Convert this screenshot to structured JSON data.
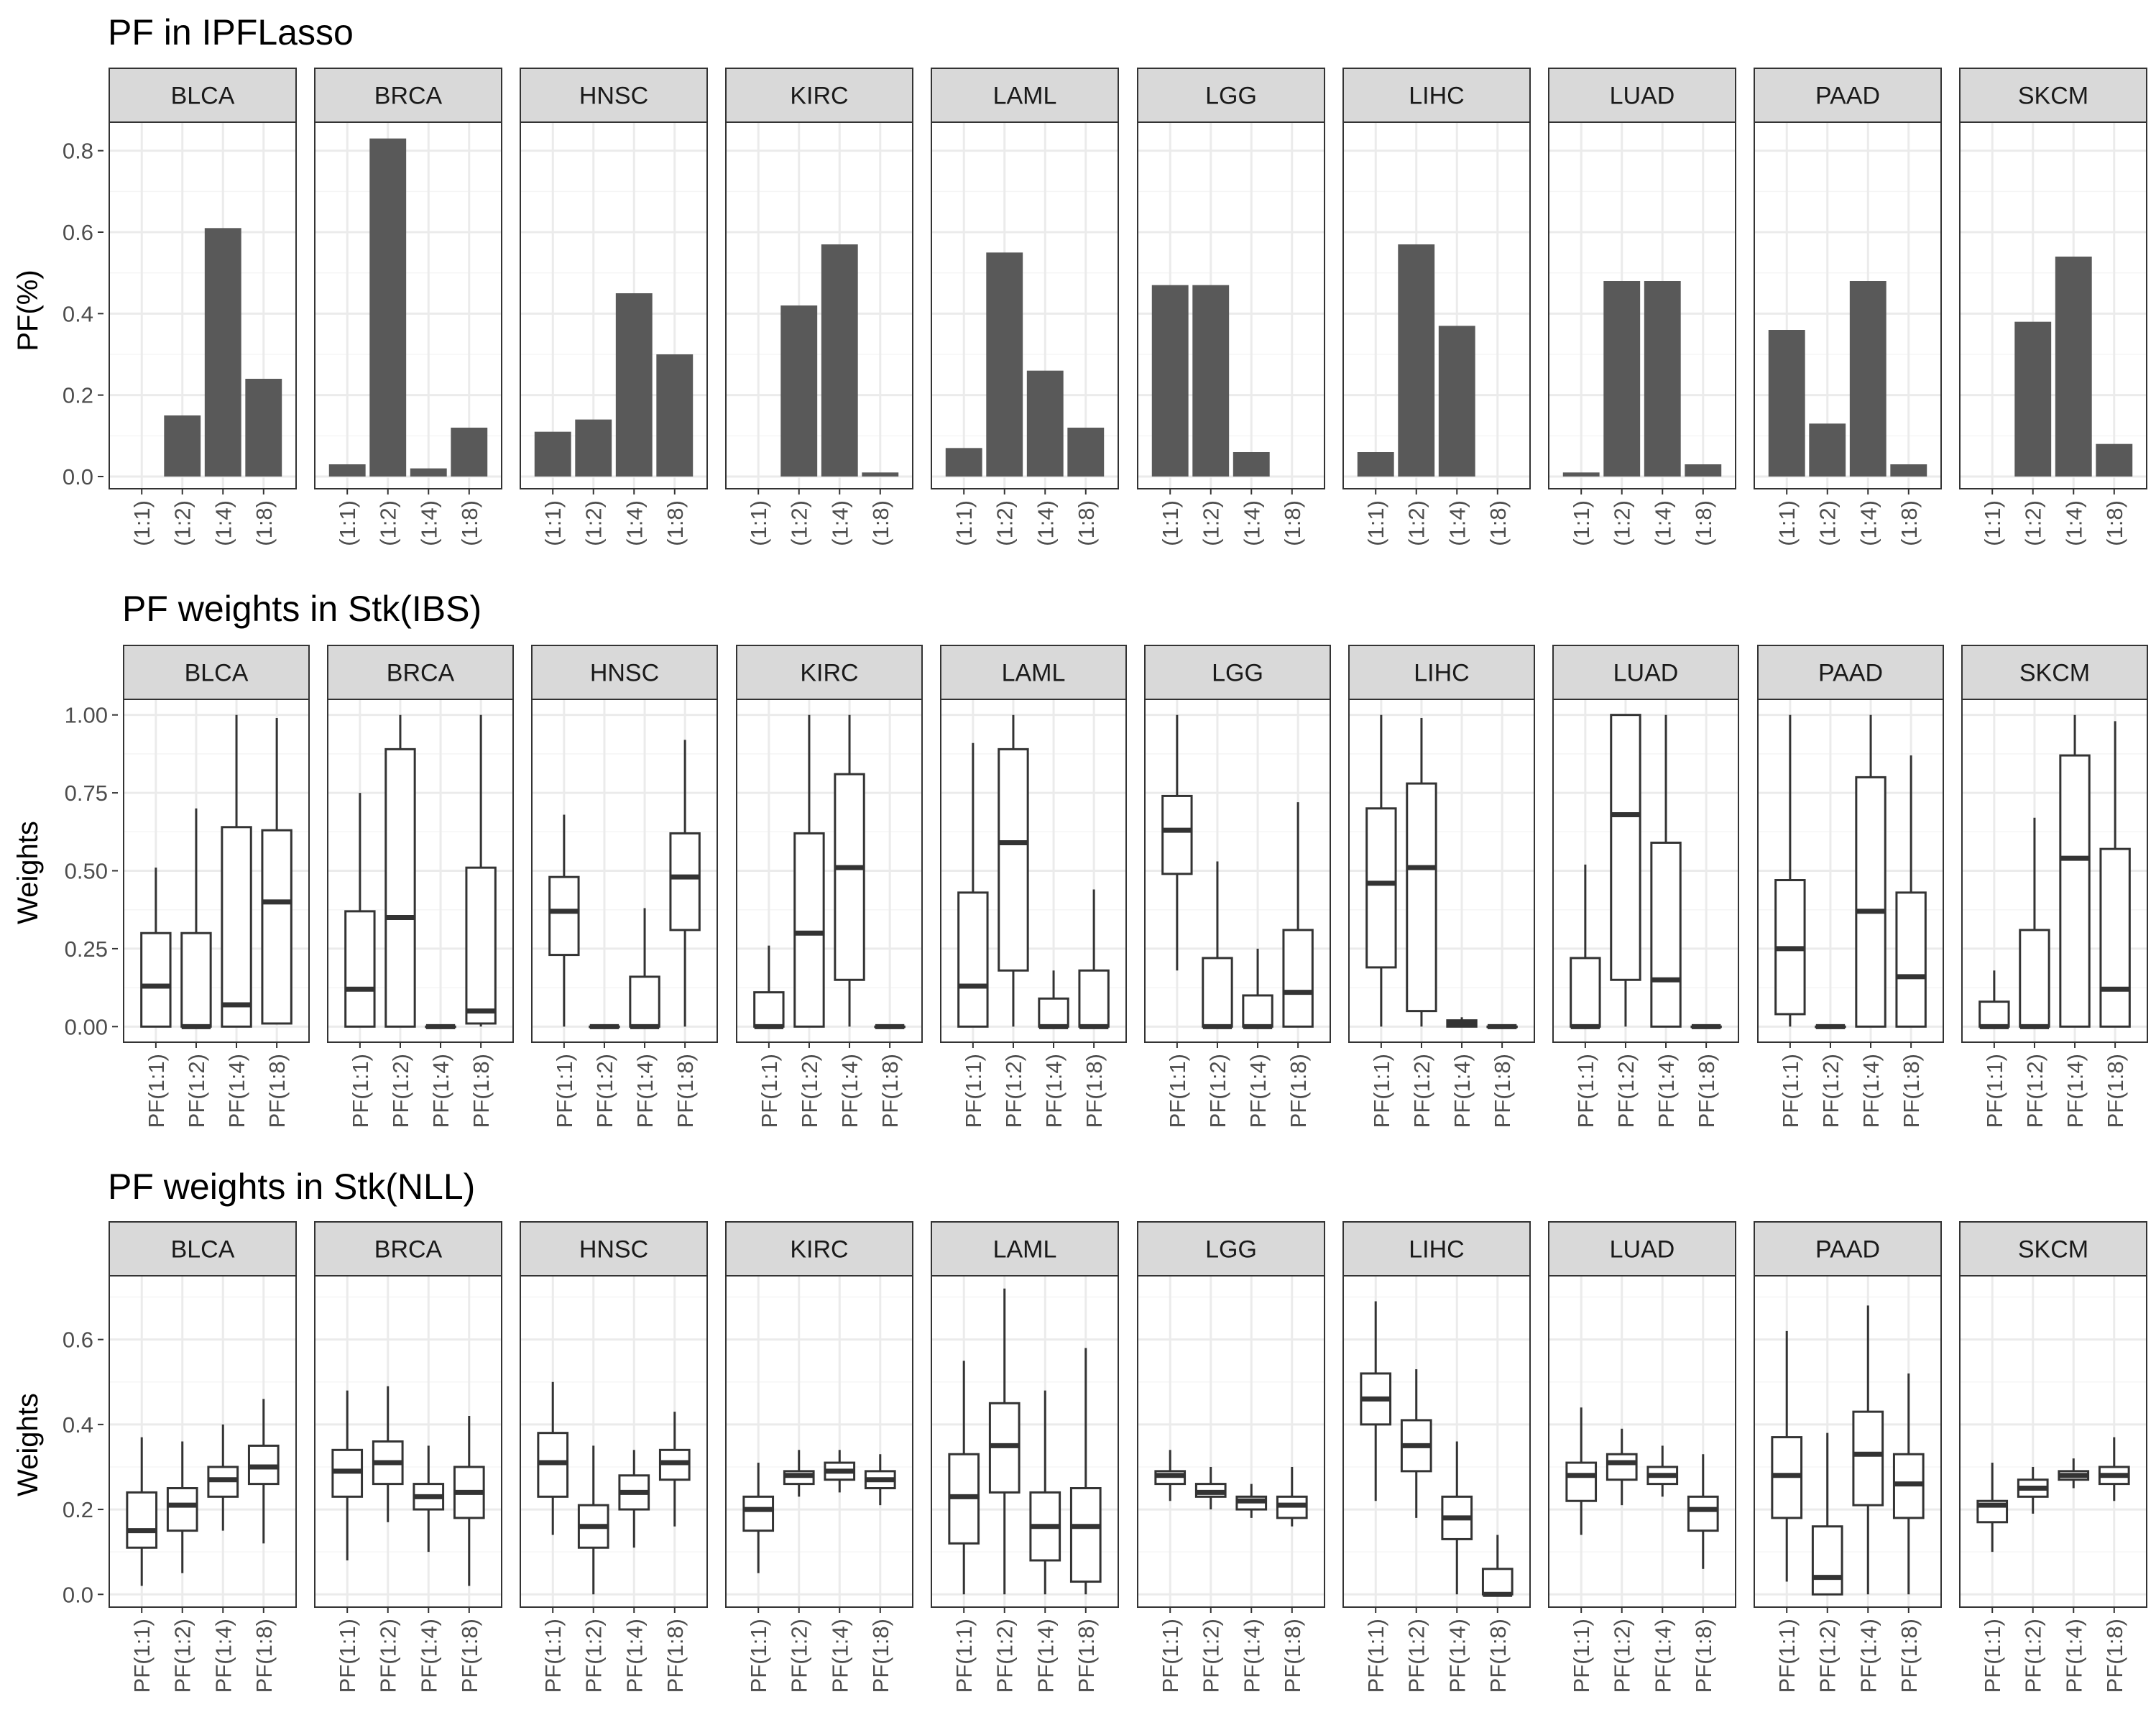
{
  "colors": {
    "bar_fill": "#595959",
    "strip_fill": "#d9d9d9",
    "panel_border": "#333333",
    "grid_major": "#ebebeb",
    "grid_minor": "#f5f5f5",
    "box_line": "#333333",
    "tick_text": "#4d4d4d"
  },
  "chart_data": [
    {
      "type": "bar",
      "title": "PF in IPFLasso",
      "ylabel": "PF(%)",
      "xlabel": "",
      "ylim": [
        -0.03,
        0.87
      ],
      "yticks": [
        0,
        0.2,
        0.4,
        0.6,
        0.8
      ],
      "ytick_labels": [
        "0.0",
        "0.2",
        "0.4",
        "0.6",
        "0.8"
      ],
      "categories": [
        "(1:1)",
        "(1:2)",
        "(1:4)",
        "(1:8)"
      ],
      "grid": true,
      "facets": [
        {
          "name": "BLCA",
          "values": [
            0.0,
            0.15,
            0.61,
            0.24
          ]
        },
        {
          "name": "BRCA",
          "values": [
            0.03,
            0.83,
            0.02,
            0.12
          ]
        },
        {
          "name": "HNSC",
          "values": [
            0.11,
            0.14,
            0.45,
            0.3
          ]
        },
        {
          "name": "KIRC",
          "values": [
            0.0,
            0.42,
            0.57,
            0.01
          ]
        },
        {
          "name": "LAML",
          "values": [
            0.07,
            0.55,
            0.26,
            0.12
          ]
        },
        {
          "name": "LGG",
          "values": [
            0.47,
            0.47,
            0.06,
            0.0
          ]
        },
        {
          "name": "LIHC",
          "values": [
            0.06,
            0.57,
            0.37,
            0.0
          ]
        },
        {
          "name": "LUAD",
          "values": [
            0.01,
            0.48,
            0.48,
            0.03
          ]
        },
        {
          "name": "PAAD",
          "values": [
            0.36,
            0.13,
            0.48,
            0.03
          ]
        },
        {
          "name": "SKCM",
          "values": [
            0.0,
            0.38,
            0.54,
            0.08
          ]
        }
      ]
    },
    {
      "type": "box",
      "title": "PF weights in Stk(IBS)",
      "ylabel": "Weights",
      "xlabel": "",
      "ylim": [
        -0.05,
        1.05
      ],
      "yticks": [
        0,
        0.25,
        0.5,
        0.75,
        1.0
      ],
      "ytick_labels": [
        "0.00",
        "0.25",
        "0.50",
        "0.75",
        "1.00"
      ],
      "categories": [
        "PF(1:1)",
        "PF(1:2)",
        "PF(1:4)",
        "PF(1:8)"
      ],
      "grid": true,
      "stat_order": [
        "min",
        "q1",
        "median",
        "q3",
        "max"
      ],
      "facets": [
        {
          "name": "BLCA",
          "boxes": [
            [
              0,
              0,
              0.13,
              0.3,
              0.51
            ],
            [
              0,
              0,
              0.0,
              0.3,
              0.7
            ],
            [
              0,
              0,
              0.07,
              0.64,
              1.0
            ],
            [
              0.01,
              0.01,
              0.4,
              0.63,
              0.99
            ]
          ]
        },
        {
          "name": "BRCA",
          "boxes": [
            [
              0,
              0,
              0.12,
              0.37,
              0.75
            ],
            [
              0,
              0,
              0.35,
              0.89,
              1.0
            ],
            [
              0,
              0,
              0.0,
              0.0,
              0.0
            ],
            [
              0,
              0.01,
              0.05,
              0.51,
              1.0
            ]
          ]
        },
        {
          "name": "HNSC",
          "boxes": [
            [
              0,
              0.23,
              0.37,
              0.48,
              0.68
            ],
            [
              0,
              0,
              0.0,
              0.0,
              0.0
            ],
            [
              0,
              0,
              0.0,
              0.16,
              0.38
            ],
            [
              0,
              0.31,
              0.48,
              0.62,
              0.92
            ]
          ]
        },
        {
          "name": "KIRC",
          "boxes": [
            [
              0,
              0,
              0.0,
              0.11,
              0.26
            ],
            [
              0,
              0,
              0.3,
              0.62,
              1.0
            ],
            [
              0,
              0.15,
              0.51,
              0.81,
              1.0
            ],
            [
              0,
              0,
              0.0,
              0.0,
              0.0
            ]
          ]
        },
        {
          "name": "LAML",
          "boxes": [
            [
              0,
              0,
              0.13,
              0.43,
              0.91
            ],
            [
              0,
              0.18,
              0.59,
              0.89,
              1.0
            ],
            [
              0,
              0,
              0.0,
              0.09,
              0.18
            ],
            [
              0,
              0,
              0.0,
              0.18,
              0.44
            ]
          ]
        },
        {
          "name": "LGG",
          "boxes": [
            [
              0.18,
              0.49,
              0.63,
              0.74,
              1.0
            ],
            [
              0,
              0,
              0.0,
              0.22,
              0.53
            ],
            [
              0,
              0,
              0.0,
              0.1,
              0.25
            ],
            [
              0,
              0,
              0.11,
              0.31,
              0.72
            ]
          ]
        },
        {
          "name": "LIHC",
          "boxes": [
            [
              0,
              0.19,
              0.46,
              0.7,
              1.0
            ],
            [
              0,
              0.05,
              0.51,
              0.78,
              0.99
            ],
            [
              0,
              0,
              0.01,
              0.02,
              0.03
            ],
            [
              0,
              0,
              0.0,
              0.0,
              0.0
            ]
          ]
        },
        {
          "name": "LUAD",
          "boxes": [
            [
              0,
              0,
              0.0,
              0.22,
              0.52
            ],
            [
              0,
              0.15,
              0.68,
              1.0,
              1.0
            ],
            [
              0,
              0,
              0.15,
              0.59,
              1.0
            ],
            [
              0,
              0,
              0.0,
              0.0,
              0.0
            ]
          ]
        },
        {
          "name": "PAAD",
          "boxes": [
            [
              0,
              0.04,
              0.25,
              0.47,
              1.0
            ],
            [
              0,
              0,
              0.0,
              0.0,
              0.0
            ],
            [
              0,
              0,
              0.37,
              0.8,
              1.0
            ],
            [
              0,
              0,
              0.16,
              0.43,
              0.87
            ]
          ]
        },
        {
          "name": "SKCM",
          "boxes": [
            [
              0,
              0,
              0.0,
              0.08,
              0.18
            ],
            [
              0,
              0,
              0.0,
              0.31,
              0.67
            ],
            [
              0,
              0,
              0.54,
              0.87,
              1.0
            ],
            [
              0,
              0,
              0.12,
              0.57,
              0.98
            ]
          ]
        }
      ]
    },
    {
      "type": "box",
      "title": "PF weights in Stk(NLL)",
      "ylabel": "Weights",
      "xlabel": "",
      "ylim": [
        -0.03,
        0.75
      ],
      "yticks": [
        0,
        0.2,
        0.4,
        0.6
      ],
      "ytick_labels": [
        "0.0",
        "0.2",
        "0.4",
        "0.6"
      ],
      "categories": [
        "PF(1:1)",
        "PF(1:2)",
        "PF(1:4)",
        "PF(1:8)"
      ],
      "grid": true,
      "stat_order": [
        "min",
        "q1",
        "median",
        "q3",
        "max"
      ],
      "facets": [
        {
          "name": "BLCA",
          "boxes": [
            [
              0.02,
              0.11,
              0.15,
              0.24,
              0.37
            ],
            [
              0.05,
              0.15,
              0.21,
              0.25,
              0.36
            ],
            [
              0.15,
              0.23,
              0.27,
              0.3,
              0.4
            ],
            [
              0.12,
              0.26,
              0.3,
              0.35,
              0.46
            ]
          ]
        },
        {
          "name": "BRCA",
          "boxes": [
            [
              0.08,
              0.23,
              0.29,
              0.34,
              0.48
            ],
            [
              0.17,
              0.26,
              0.31,
              0.36,
              0.49
            ],
            [
              0.1,
              0.2,
              0.23,
              0.26,
              0.35
            ],
            [
              0.02,
              0.18,
              0.24,
              0.3,
              0.42
            ]
          ]
        },
        {
          "name": "HNSC",
          "boxes": [
            [
              0.14,
              0.23,
              0.31,
              0.38,
              0.5
            ],
            [
              0.0,
              0.11,
              0.16,
              0.21,
              0.35
            ],
            [
              0.11,
              0.2,
              0.24,
              0.28,
              0.34
            ],
            [
              0.16,
              0.27,
              0.31,
              0.34,
              0.43
            ]
          ]
        },
        {
          "name": "KIRC",
          "boxes": [
            [
              0.05,
              0.15,
              0.2,
              0.23,
              0.31
            ],
            [
              0.23,
              0.26,
              0.28,
              0.29,
              0.34
            ],
            [
              0.24,
              0.27,
              0.29,
              0.31,
              0.34
            ],
            [
              0.21,
              0.25,
              0.27,
              0.29,
              0.33
            ]
          ]
        },
        {
          "name": "LAML",
          "boxes": [
            [
              0.0,
              0.12,
              0.23,
              0.33,
              0.55
            ],
            [
              0.0,
              0.24,
              0.35,
              0.45,
              0.72
            ],
            [
              0.0,
              0.08,
              0.16,
              0.24,
              0.48
            ],
            [
              0.0,
              0.03,
              0.16,
              0.25,
              0.58
            ]
          ]
        },
        {
          "name": "LGG",
          "boxes": [
            [
              0.22,
              0.26,
              0.28,
              0.29,
              0.34
            ],
            [
              0.2,
              0.23,
              0.24,
              0.26,
              0.3
            ],
            [
              0.18,
              0.2,
              0.22,
              0.23,
              0.26
            ],
            [
              0.16,
              0.18,
              0.21,
              0.23,
              0.3
            ]
          ]
        },
        {
          "name": "LIHC",
          "boxes": [
            [
              0.22,
              0.4,
              0.46,
              0.52,
              0.69
            ],
            [
              0.18,
              0.29,
              0.35,
              0.41,
              0.53
            ],
            [
              0.0,
              0.13,
              0.18,
              0.23,
              0.36
            ],
            [
              0.0,
              0.0,
              0.0,
              0.06,
              0.14
            ]
          ]
        },
        {
          "name": "LUAD",
          "boxes": [
            [
              0.14,
              0.22,
              0.28,
              0.31,
              0.44
            ],
            [
              0.21,
              0.27,
              0.31,
              0.33,
              0.39
            ],
            [
              0.23,
              0.26,
              0.28,
              0.3,
              0.35
            ],
            [
              0.06,
              0.15,
              0.2,
              0.23,
              0.33
            ]
          ]
        },
        {
          "name": "PAAD",
          "boxes": [
            [
              0.03,
              0.18,
              0.28,
              0.37,
              0.62
            ],
            [
              0.0,
              0.0,
              0.04,
              0.16,
              0.38
            ],
            [
              0.0,
              0.21,
              0.33,
              0.43,
              0.68
            ],
            [
              0.0,
              0.18,
              0.26,
              0.33,
              0.52
            ]
          ]
        },
        {
          "name": "SKCM",
          "boxes": [
            [
              0.1,
              0.17,
              0.21,
              0.22,
              0.31
            ],
            [
              0.19,
              0.23,
              0.25,
              0.27,
              0.3
            ],
            [
              0.25,
              0.27,
              0.28,
              0.29,
              0.32
            ],
            [
              0.22,
              0.26,
              0.28,
              0.3,
              0.37
            ]
          ]
        }
      ]
    }
  ]
}
